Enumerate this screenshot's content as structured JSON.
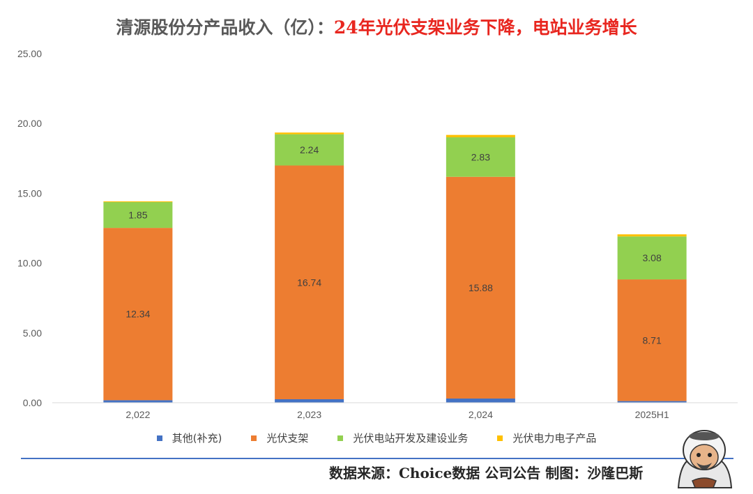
{
  "title": {
    "part1": "清源股份分产品收入（亿）：",
    "part2": "24年光伏支架业务下降，电站业务增长"
  },
  "colors": {
    "series": [
      "#4472c4",
      "#ed7d31",
      "#92d050",
      "#ffc000"
    ],
    "title_highlight": "#e8261f",
    "separator": "#4472c4"
  },
  "chart_data": {
    "type": "bar",
    "stacked": true,
    "categories": [
      "2,022",
      "2,023",
      "2,024",
      "2025H1"
    ],
    "series": [
      {
        "name": "其他(补充)",
        "values": [
          0.18,
          0.25,
          0.3,
          0.12
        ]
      },
      {
        "name": "光伏支架",
        "values": [
          12.34,
          16.74,
          15.88,
          8.71
        ]
      },
      {
        "name": "光伏电站开发及建设业务",
        "values": [
          1.85,
          2.24,
          2.83,
          3.08
        ]
      },
      {
        "name": "光伏电力电子产品",
        "values": [
          0.05,
          0.12,
          0.17,
          0.15
        ]
      }
    ],
    "data_labels": [
      {
        "series": 1,
        "values": [
          "12.34",
          "16.74",
          "15.88",
          "8.71"
        ]
      },
      {
        "series": 2,
        "values": [
          "1.85",
          "2.24",
          "2.83",
          "3.08"
        ]
      }
    ],
    "y_ticks": [
      "0.00",
      "5.00",
      "10.00",
      "15.00",
      "20.00",
      "25.00"
    ],
    "ylim": [
      0,
      25
    ],
    "grid": false,
    "legend_position": "bottom"
  },
  "source": "数据来源：Choice数据  公司公告  制图：沙隆巴斯",
  "mascot_icon": "cartoon-sheikh-avatar"
}
